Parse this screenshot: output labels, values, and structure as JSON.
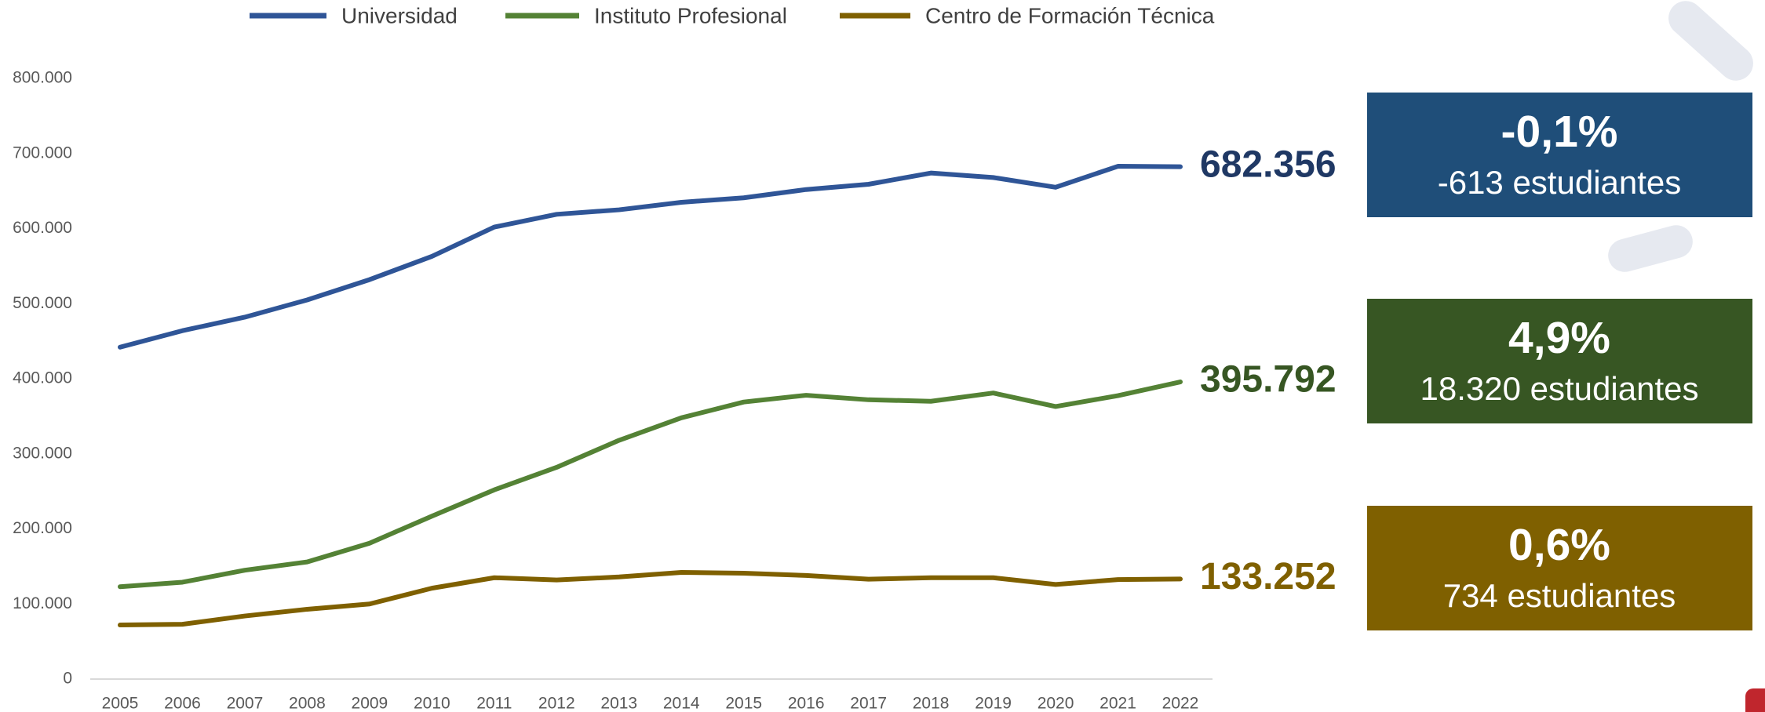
{
  "chart_data": {
    "type": "line",
    "categories": [
      "2005",
      "2006",
      "2007",
      "2008",
      "2009",
      "2010",
      "2011",
      "2012",
      "2013",
      "2014",
      "2015",
      "2016",
      "2017",
      "2018",
      "2019",
      "2020",
      "2021",
      "2022"
    ],
    "series": [
      {
        "name": "Universidad",
        "color": "#2f5597",
        "label_color": "#1f3864",
        "end_label": "682.356",
        "values": [
          442000,
          464000,
          482000,
          505000,
          532000,
          563000,
          602000,
          619000,
          625000,
          635000,
          641000,
          652000,
          659000,
          674000,
          668000,
          655000,
          682969,
          682356
        ]
      },
      {
        "name": "Instituto Profesional",
        "color": "#548235",
        "label_color": "#375623",
        "end_label": "395.792",
        "values": [
          123000,
          129000,
          145000,
          156000,
          181000,
          217000,
          252000,
          282000,
          318000,
          348000,
          369000,
          378000,
          372000,
          370000,
          381000,
          363000,
          377472,
          395792
        ]
      },
      {
        "name": "Centro de Formación Técnica",
        "color": "#7f6000",
        "label_color": "#7f6000",
        "end_label": "133.252",
        "values": [
          72000,
          73000,
          84000,
          93000,
          100000,
          121000,
          135000,
          132000,
          136000,
          142000,
          141000,
          138000,
          133000,
          135000,
          135000,
          126000,
          132518,
          133252
        ]
      }
    ],
    "ylim": [
      0,
      800000
    ],
    "yticks": [
      0,
      {
        "value": 100000,
        "label": "100.000"
      },
      {
        "value": 200000,
        "label": "200.000"
      },
      {
        "value": 300000,
        "label": "300.000"
      },
      {
        "value": 400000,
        "label": "400.000"
      },
      {
        "value": 500000,
        "label": "500.000"
      },
      {
        "value": 600000,
        "label": "600.000"
      },
      {
        "value": 700000,
        "label": "700.000"
      },
      {
        "value": 800000,
        "label": "800.000"
      }
    ],
    "grid": false,
    "legend": "top",
    "boxes": [
      {
        "change": "-0,1%",
        "students": "-613 estudiantes",
        "color": "#1f4e79"
      },
      {
        "change": "4,9%",
        "students": "18.320 estudiantes",
        "color": "#375623"
      },
      {
        "change": "0,6%",
        "students": "734 estudiantes",
        "color": "#7f6000"
      }
    ]
  }
}
